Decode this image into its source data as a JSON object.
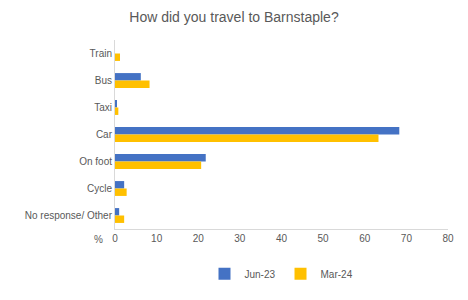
{
  "chart_data": {
    "type": "bar",
    "orientation": "horizontal",
    "title": "How did you travel to Barnstaple?",
    "xlabel": "%",
    "categories": [
      "Train",
      "Bus",
      "Taxi",
      "Car",
      "On foot",
      "Cycle",
      "No response/ Other"
    ],
    "series": [
      {
        "name": "Jun-23",
        "color": "#4472c4",
        "values": [
          0,
          6.2,
          0.3,
          68.3,
          21.8,
          2.2,
          1.0
        ]
      },
      {
        "name": "Mar-24",
        "color": "#ffc000",
        "values": [
          1.2,
          8.3,
          0.8,
          63.3,
          20.7,
          2.8,
          2.2
        ]
      }
    ],
    "xlim": [
      0,
      80
    ],
    "xticks": [
      0,
      10,
      20,
      30,
      40,
      50,
      60,
      70,
      80
    ],
    "grid": false,
    "legend": "bottom"
  }
}
